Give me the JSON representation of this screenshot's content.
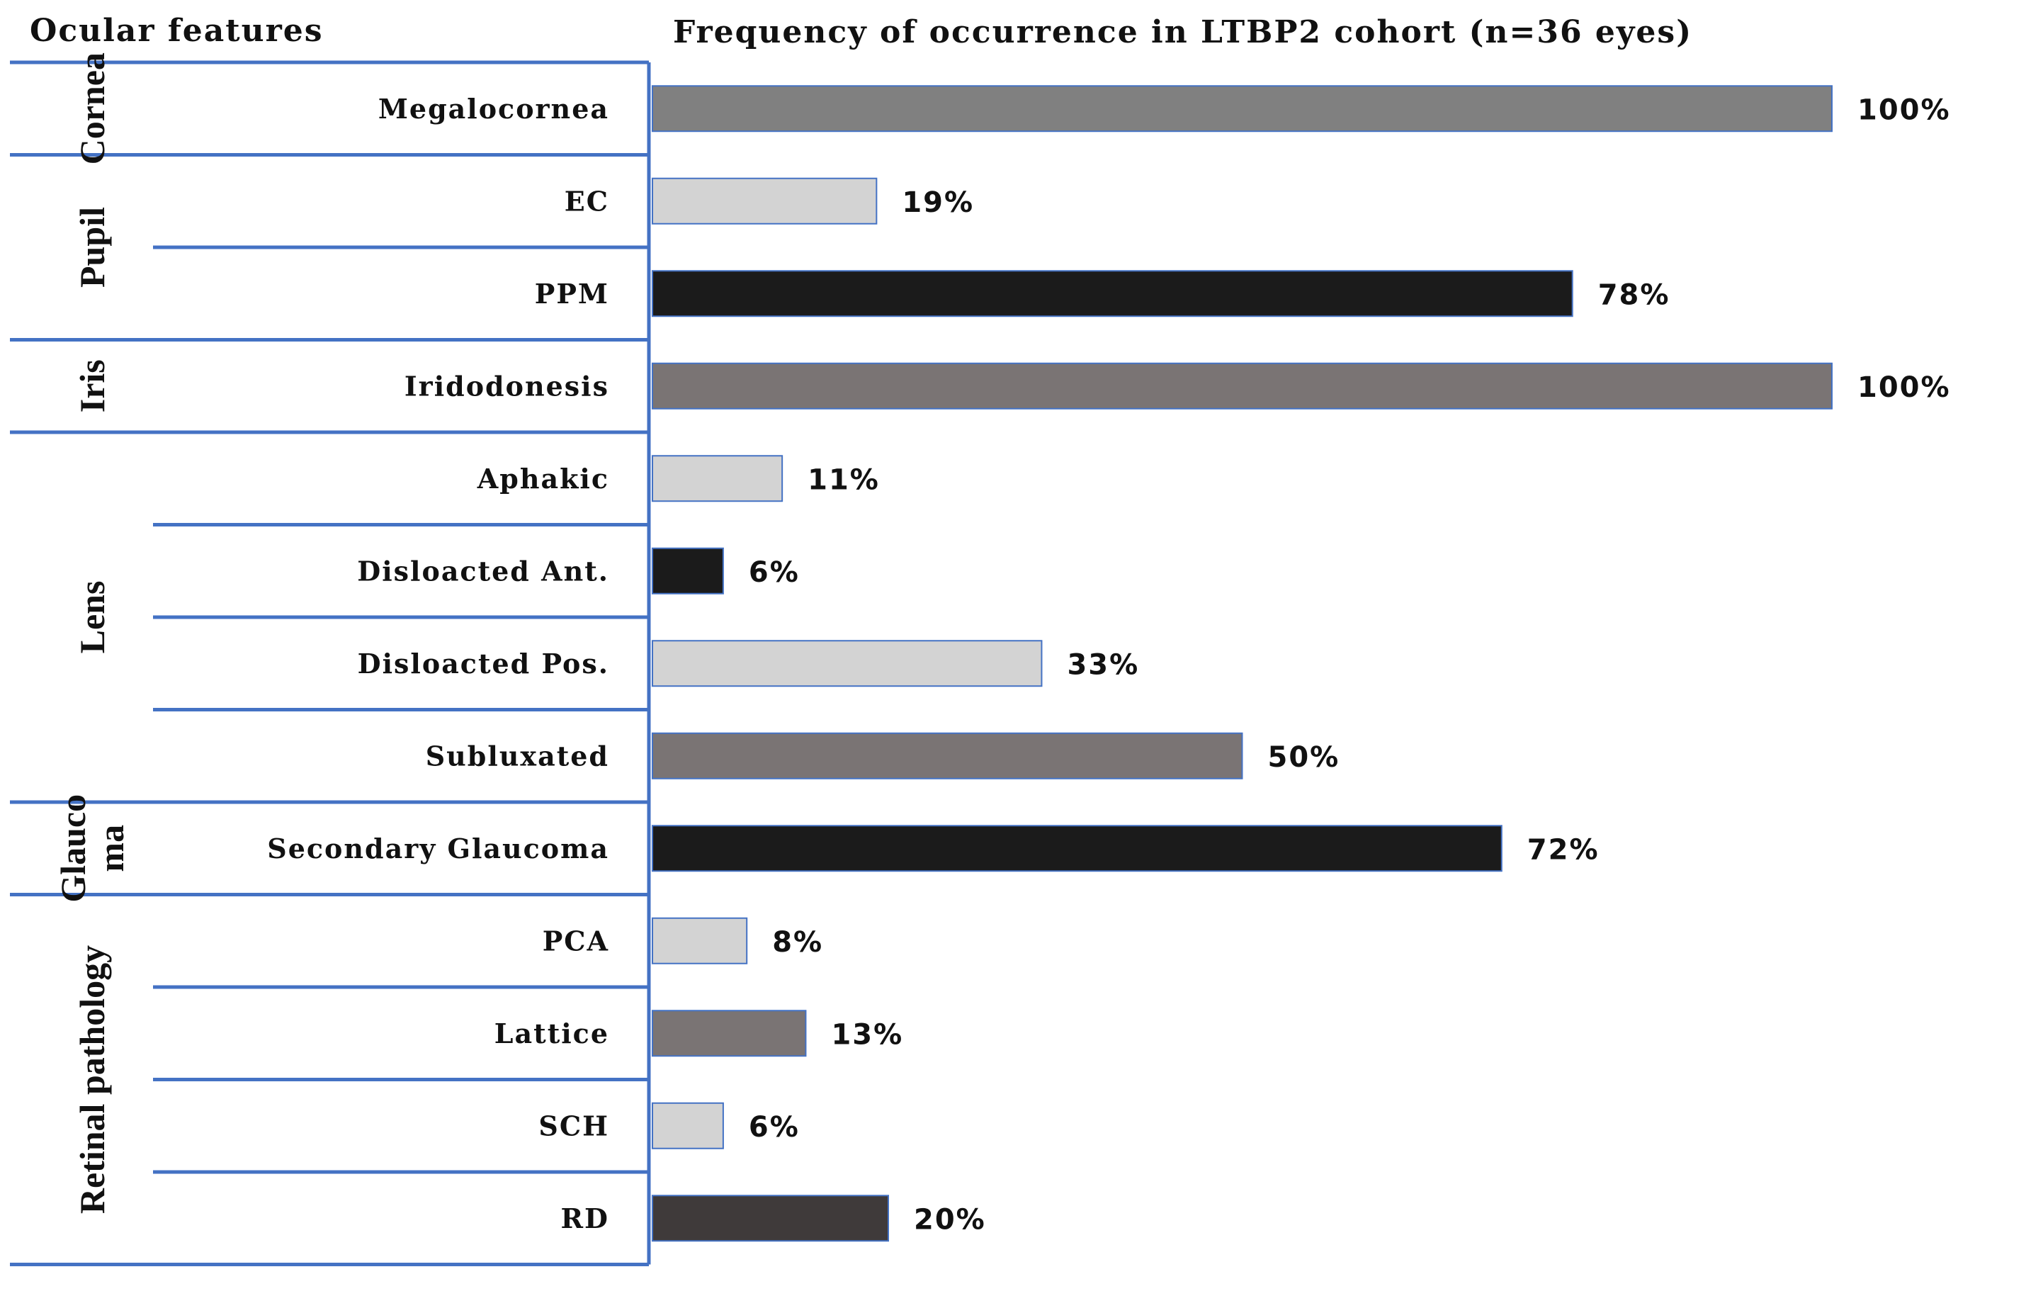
{
  "chart_data": {
    "type": "bar",
    "orientation": "horizontal",
    "left_header": "Ocular features",
    "title": "Frequency of occurrence in LTBP2 cohort (n=36 eyes)",
    "xlim": [
      0,
      100
    ],
    "grid": false,
    "legend": "none",
    "groups": [
      {
        "name": "Cornea",
        "lines": [
          "Cornea"
        ],
        "start": 0,
        "count": 1
      },
      {
        "name": "Pupil",
        "lines": [
          "Pupil"
        ],
        "start": 1,
        "count": 2
      },
      {
        "name": "Iris",
        "lines": [
          "Iris"
        ],
        "start": 3,
        "count": 1
      },
      {
        "name": "Lens",
        "lines": [
          "Lens"
        ],
        "start": 4,
        "count": 4
      },
      {
        "name": "Glaucoma",
        "lines": [
          "Glauco",
          "ma"
        ],
        "start": 8,
        "count": 1
      },
      {
        "name": "Retinal pathology",
        "lines": [
          "Retinal pathology"
        ],
        "start": 9,
        "count": 4
      }
    ],
    "categories": [
      "Megalocornea",
      "EC",
      "PPM",
      "Iridodonesis",
      "Aphakic",
      "Disloacted Ant.",
      "Disloacted Pos.",
      "Subluxated",
      "Secondary Glaucoma",
      "PCA",
      "Lattice",
      "SCH",
      "RD"
    ],
    "values": [
      100,
      19,
      78,
      100,
      11,
      6,
      33,
      50,
      72,
      8,
      13,
      6,
      20
    ],
    "value_labels": [
      "100%",
      "19%",
      "78%",
      "100%",
      "11%",
      "6%",
      "33%",
      "50%",
      "72%",
      "8%",
      "13%",
      "6%",
      "20%"
    ],
    "bar_colors": [
      "#808080",
      "#d3d3d3",
      "#1b1b1b",
      "#7a7474",
      "#d3d3d3",
      "#1b1b1b",
      "#d3d3d3",
      "#7a7474",
      "#1b1b1b",
      "#d3d3d3",
      "#7a7474",
      "#d3d3d3",
      "#3f3a3a"
    ],
    "frame_color": "#4472c4",
    "bar_outline_color": "#4472c4"
  }
}
